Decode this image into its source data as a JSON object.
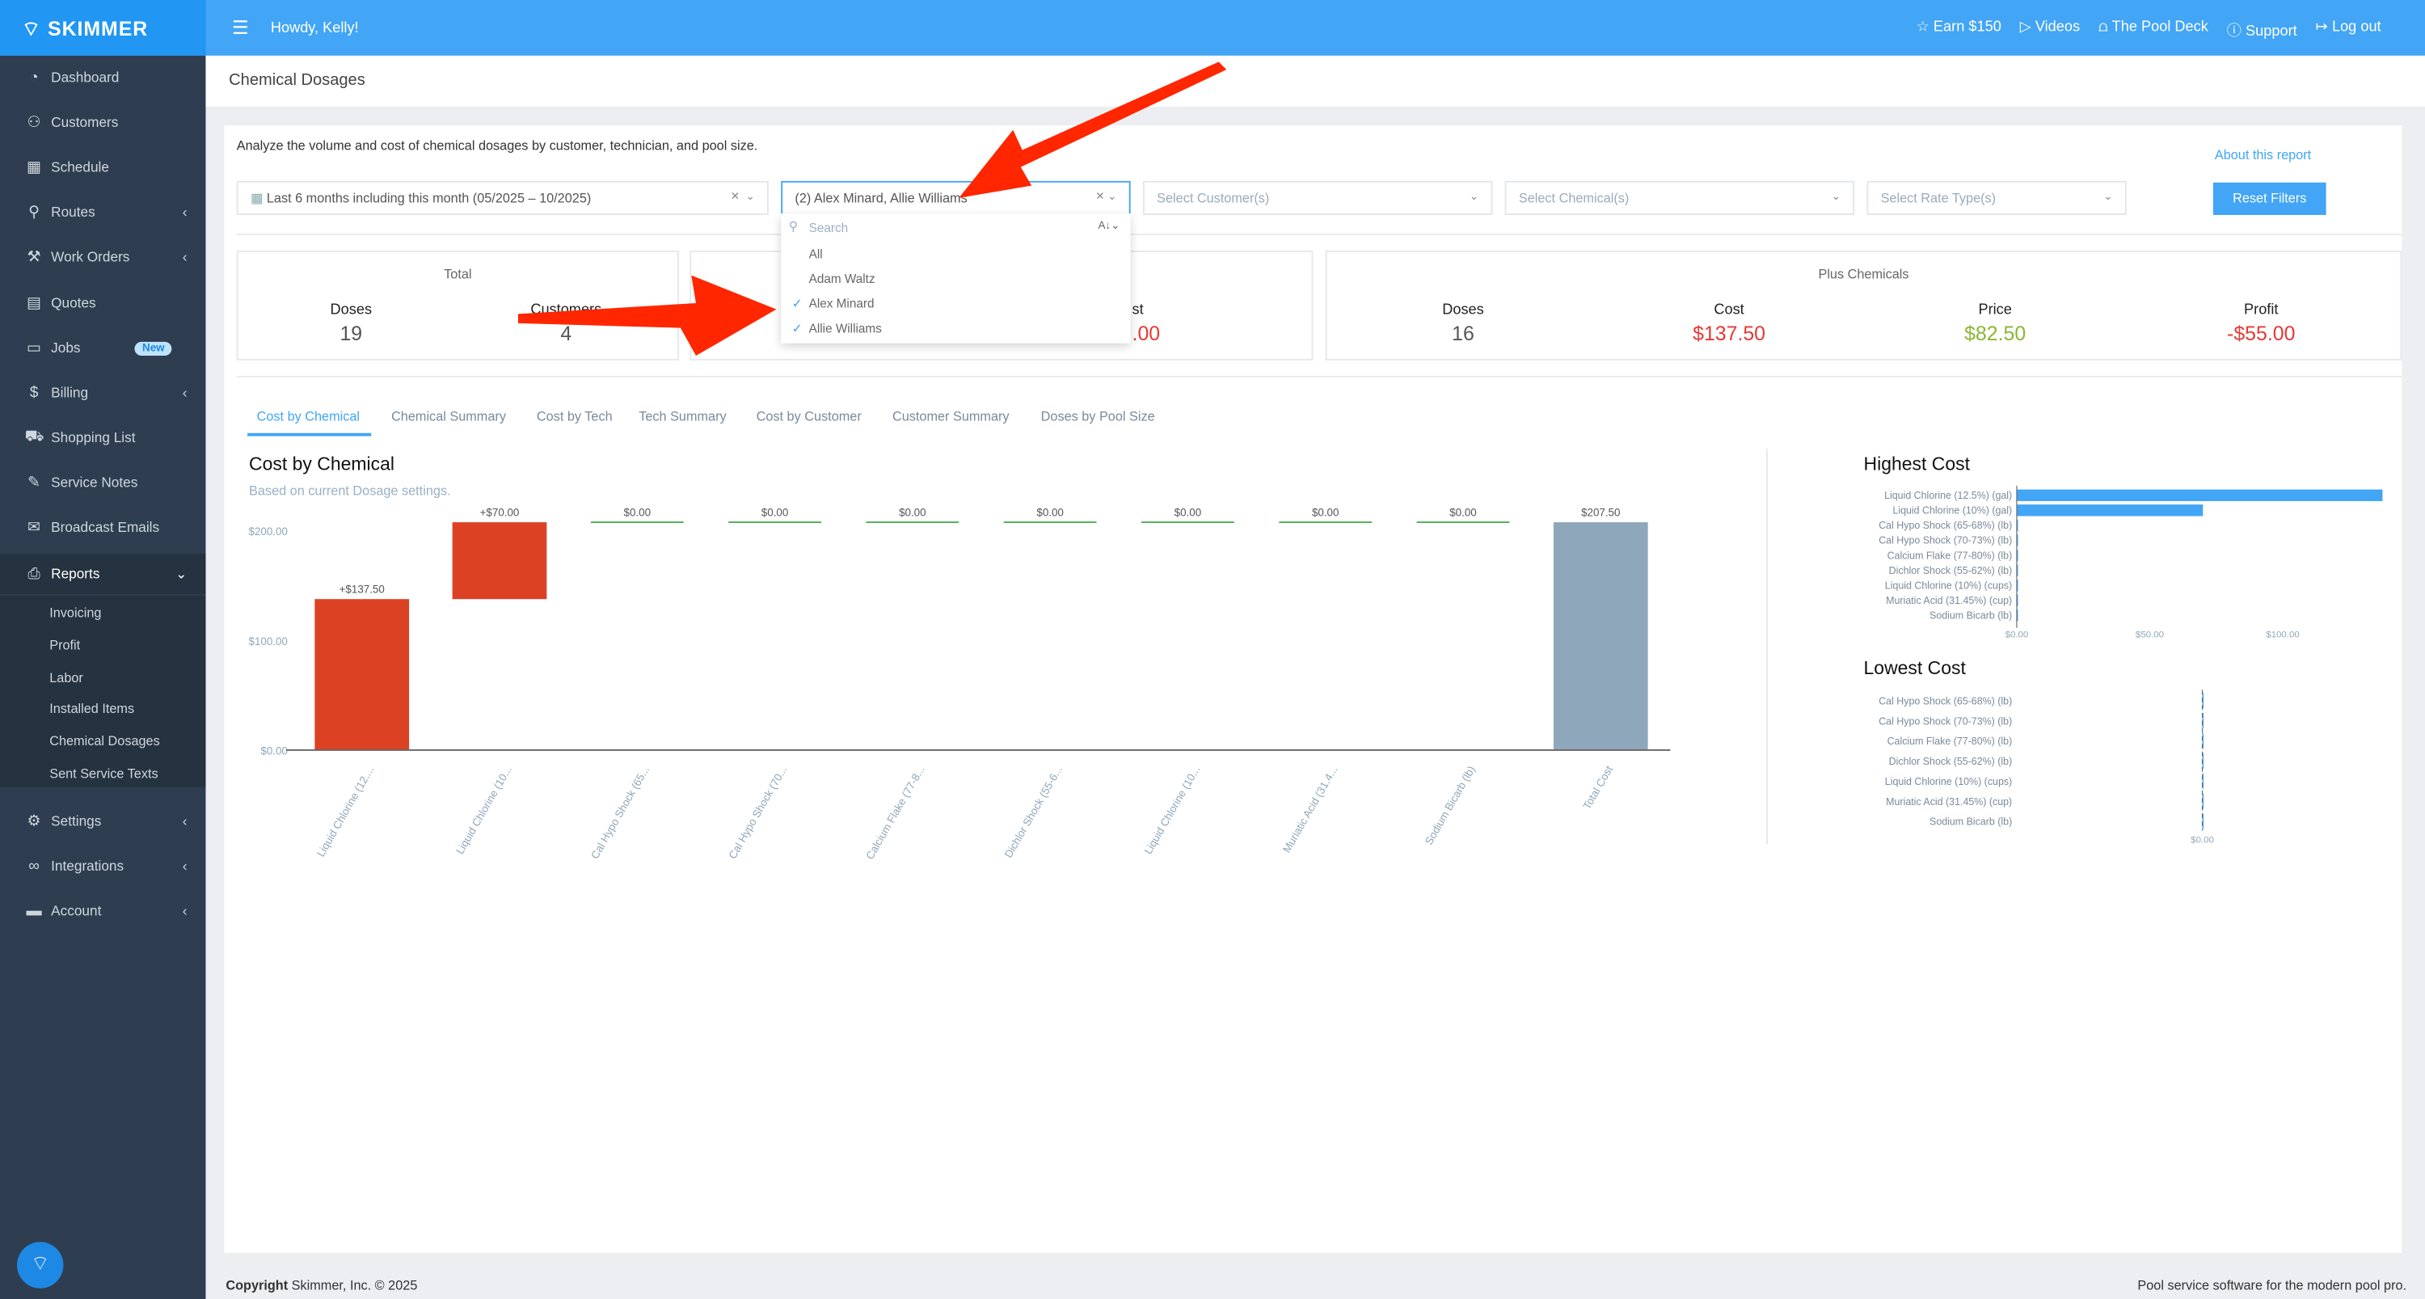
{
  "header": {
    "logo": "SKIMMER",
    "greeting": "Howdy, Kelly!",
    "links": [
      {
        "icon": "star-icon",
        "label": "Earn $150"
      },
      {
        "icon": "play-circle-icon",
        "label": "Videos"
      },
      {
        "icon": "pool-ladder-icon",
        "label": "The Pool Deck"
      },
      {
        "icon": "help-circle-icon",
        "label": "Support"
      },
      {
        "icon": "logout-icon",
        "label": "Log out"
      }
    ]
  },
  "sidebar": {
    "items": [
      {
        "label": "Dashboard",
        "icon": "gauge-icon"
      },
      {
        "label": "Customers",
        "icon": "users-icon"
      },
      {
        "label": "Schedule",
        "icon": "calendar-icon"
      },
      {
        "label": "Routes",
        "icon": "route-icon",
        "chevron": true
      },
      {
        "label": "Work Orders",
        "icon": "wrench-icon",
        "chevron": true
      },
      {
        "label": "Quotes",
        "icon": "document-icon"
      },
      {
        "label": "Jobs",
        "icon": "briefcase-icon",
        "badge": "New"
      },
      {
        "label": "Billing",
        "icon": "invoice-icon",
        "chevron": true
      },
      {
        "label": "Shopping List",
        "icon": "cart-icon"
      },
      {
        "label": "Service Notes",
        "icon": "edit-icon"
      },
      {
        "label": "Broadcast Emails",
        "icon": "mail-icon"
      },
      {
        "label": "Reports",
        "icon": "printer-icon",
        "active": true
      },
      {
        "label": "Settings",
        "icon": "gear-icon",
        "chevron": true
      },
      {
        "label": "Integrations",
        "icon": "link-icon",
        "chevron": true
      },
      {
        "label": "Account",
        "icon": "card-icon",
        "chevron": true
      }
    ],
    "report_subitems": [
      "Invoicing",
      "Profit",
      "Labor",
      "Installed Items",
      "Chemical Dosages",
      "Sent Service Texts"
    ]
  },
  "page": {
    "title": "Chemical Dosages",
    "description": "Analyze the volume and cost of chemical dosages by customer, technician, and pool size.",
    "about_link": "About this report",
    "reset_button": "Reset Filters"
  },
  "filters": {
    "date_range": "Last 6 months including this month (05/2025 – 10/2025)",
    "technicians": "(2) Alex Minard, Allie Williams",
    "customers_placeholder": "Select Customer(s)",
    "chemicals_placeholder": "Select Chemical(s)",
    "rate_type_placeholder": "Select Rate Type(s)"
  },
  "tech_dropdown": {
    "search_placeholder": "Search",
    "options": [
      {
        "label": "All",
        "checked": false
      },
      {
        "label": "Adam Waltz",
        "checked": false
      },
      {
        "label": "Alex Minard",
        "checked": true
      },
      {
        "label": "Allie Williams",
        "checked": true
      }
    ]
  },
  "stats": {
    "total": {
      "title": "Total",
      "doses_label": "Doses",
      "doses": "19",
      "customers_label": "Customers",
      "customers": "4"
    },
    "partial": {
      "label_fragment": "st",
      "value_fragment": ".00"
    },
    "plus_chemicals": {
      "title": "Plus Chemicals",
      "doses_label": "Doses",
      "doses": "16",
      "cost_label": "Cost",
      "cost": "$137.50",
      "price_label": "Price",
      "price": "$82.50",
      "profit_label": "Profit",
      "profit": "-$55.00"
    }
  },
  "tabs": [
    "Cost by Chemical",
    "Chemical Summary",
    "Cost by Tech",
    "Tech Summary",
    "Cost by Customer",
    "Customer Summary",
    "Doses by Pool Size"
  ],
  "active_tab": "Cost by Chemical",
  "colors": {
    "brand": "#42a5f5",
    "increase": "#dc4123",
    "total": "#8fa7bb",
    "zero": "#4caf50",
    "hbar": "#42a5f5"
  },
  "chart_data": [
    {
      "type": "bar",
      "subtype": "waterfall",
      "title": "Cost by Chemical",
      "subtitle": "Based on current Dosage settings.",
      "categories": [
        "Liquid Chlorine (12....",
        "Liquid Chlorine (10...",
        "Cal Hypo Shock (65...",
        "Cal Hypo Shock (70...",
        "Calcium Flake (77-8...",
        "Dichlor Shock (55-6...",
        "Liquid Chlorine (10...",
        "Muriatic Acid (31.4...",
        "Sodium Bicarb (lb)",
        "Total Cost"
      ],
      "values": [
        137.5,
        70,
        0,
        0,
        0,
        0,
        0,
        0,
        0,
        207.5
      ],
      "data_labels": [
        "+$137.50",
        "+$70.00",
        "$0.00",
        "$0.00",
        "$0.00",
        "$0.00",
        "$0.00",
        "$0.00",
        "$0.00",
        "$207.50"
      ],
      "yticks": [
        "$0.00",
        "$100.00",
        "$200.00"
      ],
      "ytick_values": [
        0,
        100,
        200
      ],
      "ylim": [
        0,
        200
      ]
    },
    {
      "type": "bar",
      "orientation": "horizontal",
      "title": "Highest Cost",
      "categories": [
        "Liquid Chlorine (12.5%) (gal)",
        "Liquid Chlorine (10%) (gal)",
        "Cal Hypo Shock (65-68%) (lb)",
        "Cal Hypo Shock (70-73%) (lb)",
        "Calcium Flake (77-80%) (lb)",
        "Dichlor Shock (55-62%) (lb)",
        "Liquid Chlorine (10%) (cups)",
        "Muriatic Acid (31.45%) (cup)",
        "Sodium Bicarb (lb)"
      ],
      "values": [
        137.5,
        70,
        0,
        0,
        0,
        0,
        0,
        0,
        0
      ],
      "xticks": [
        "$0.00",
        "$50.00",
        "$100.00"
      ],
      "xtick_values": [
        0,
        50,
        100
      ]
    },
    {
      "type": "bar",
      "orientation": "horizontal",
      "title": "Lowest Cost",
      "categories": [
        "Cal Hypo Shock (65-68%) (lb)",
        "Cal Hypo Shock (70-73%) (lb)",
        "Calcium Flake (77-80%) (lb)",
        "Dichlor Shock (55-62%) (lb)",
        "Liquid Chlorine (10%) (cups)",
        "Muriatic Acid (31.45%) (cup)",
        "Sodium Bicarb (lb)"
      ],
      "values": [
        0,
        0,
        0,
        0,
        0,
        0,
        0
      ],
      "xticks": [
        "$0.00"
      ],
      "xtick_values": [
        0
      ]
    }
  ],
  "footer": {
    "copyright_bold": "Copyright",
    "copyright": " Skimmer, Inc. © 2025",
    "tagline": "Pool service software for the modern pool pro."
  }
}
